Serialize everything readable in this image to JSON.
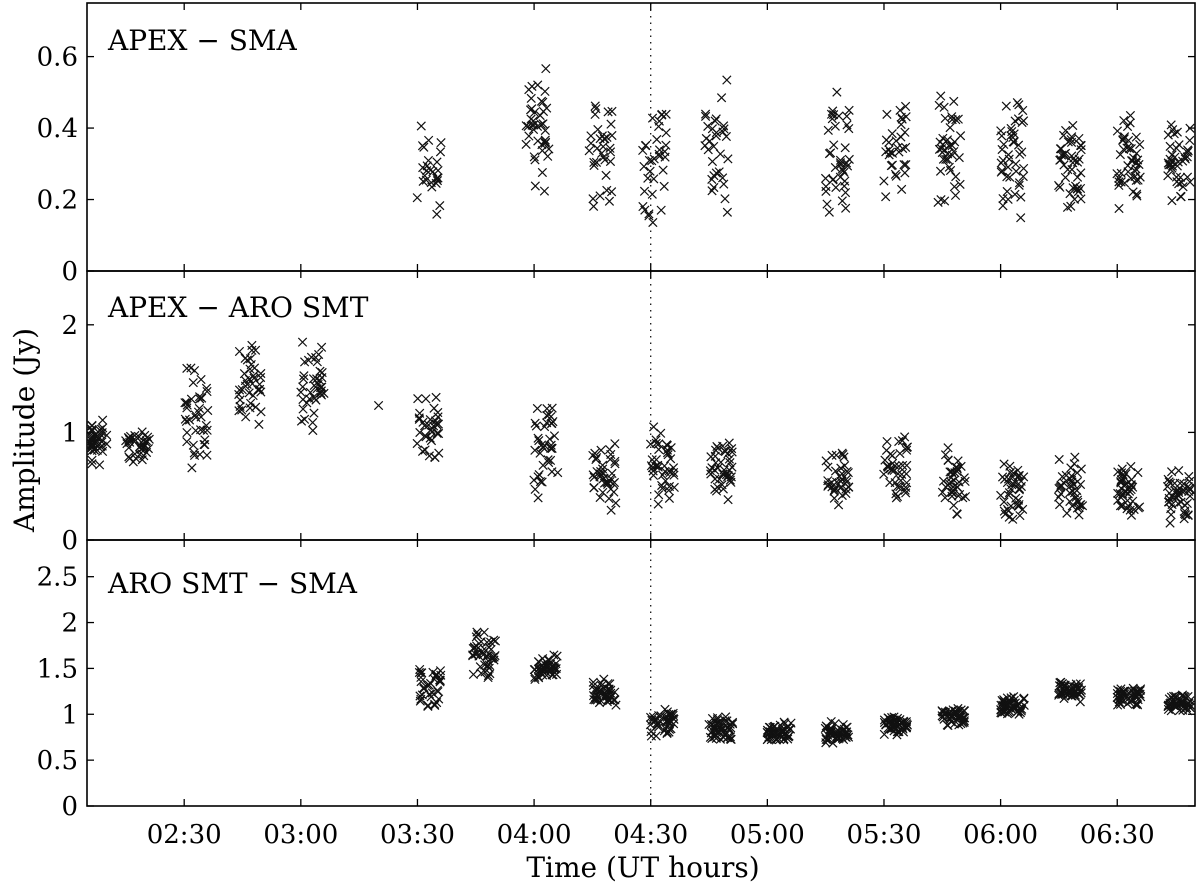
{
  "chart_data": {
    "type": "scatter",
    "xlabel": "Time (UT hours)",
    "ylabel": "Amplitude (Jy)",
    "x_range": [
      "02:05",
      "06:50"
    ],
    "x_ticks": [
      "02:30",
      "03:00",
      "03:30",
      "04:00",
      "04:30",
      "05:00",
      "05:30",
      "06:00",
      "06:30"
    ],
    "reference_line": "04:30",
    "marker": "x",
    "panels": [
      {
        "title": "APEX − SMA",
        "ylim": [
          0,
          0.75
        ],
        "y_ticks": [
          "0",
          "0.2",
          "0.4",
          "0.6"
        ],
        "scans": [
          {
            "t": "03:33",
            "mean": 0.29,
            "spread": 0.14,
            "n": 26
          },
          {
            "t": "04:01",
            "mean": 0.4,
            "spread": 0.15,
            "n": 40
          },
          {
            "t": "04:17",
            "mean": 0.33,
            "spread": 0.14,
            "n": 34
          },
          {
            "t": "04:31",
            "mean": 0.32,
            "spread": 0.15,
            "n": 34
          },
          {
            "t": "04:47",
            "mean": 0.34,
            "spread": 0.15,
            "n": 32
          },
          {
            "t": "05:18",
            "mean": 0.3,
            "spread": 0.15,
            "n": 40
          },
          {
            "t": "05:33",
            "mean": 0.34,
            "spread": 0.12,
            "n": 32
          },
          {
            "t": "05:47",
            "mean": 0.36,
            "spread": 0.13,
            "n": 40
          },
          {
            "t": "06:03",
            "mean": 0.32,
            "spread": 0.13,
            "n": 44
          },
          {
            "t": "06:18",
            "mean": 0.3,
            "spread": 0.11,
            "n": 44
          },
          {
            "t": "06:33",
            "mean": 0.31,
            "spread": 0.11,
            "n": 44
          },
          {
            "t": "06:46",
            "mean": 0.31,
            "spread": 0.09,
            "n": 44
          }
        ]
      },
      {
        "title": "APEX − ARO SMT",
        "ylim": [
          0,
          2.5
        ],
        "y_ticks": [
          "0",
          "1",
          "2"
        ],
        "scans": [
          {
            "t": "02:07",
            "mean": 0.9,
            "spread": 0.17,
            "n": 40
          },
          {
            "t": "02:18",
            "mean": 0.9,
            "spread": 0.14,
            "n": 36
          },
          {
            "t": "02:33",
            "mean": 1.15,
            "spread": 0.4,
            "n": 40
          },
          {
            "t": "02:47",
            "mean": 1.45,
            "spread": 0.3,
            "n": 40
          },
          {
            "t": "03:03",
            "mean": 1.45,
            "spread": 0.33,
            "n": 40
          },
          {
            "t": "03:20",
            "mean": 1.25,
            "spread": 0.0,
            "n": 1
          },
          {
            "t": "03:33",
            "mean": 1.05,
            "spread": 0.25,
            "n": 34
          },
          {
            "t": "04:03",
            "mean": 0.85,
            "spread": 0.35,
            "n": 40
          },
          {
            "t": "04:18",
            "mean": 0.6,
            "spread": 0.25,
            "n": 40
          },
          {
            "t": "04:33",
            "mean": 0.65,
            "spread": 0.3,
            "n": 40
          },
          {
            "t": "04:48",
            "mean": 0.65,
            "spread": 0.25,
            "n": 40
          },
          {
            "t": "05:18",
            "mean": 0.55,
            "spread": 0.2,
            "n": 36
          },
          {
            "t": "05:33",
            "mean": 0.65,
            "spread": 0.25,
            "n": 40
          },
          {
            "t": "05:48",
            "mean": 0.55,
            "spread": 0.25,
            "n": 40
          },
          {
            "t": "06:03",
            "mean": 0.45,
            "spread": 0.25,
            "n": 40
          },
          {
            "t": "06:18",
            "mean": 0.5,
            "spread": 0.23,
            "n": 40
          },
          {
            "t": "06:33",
            "mean": 0.45,
            "spread": 0.2,
            "n": 40
          },
          {
            "t": "06:46",
            "mean": 0.4,
            "spread": 0.2,
            "n": 44
          }
        ]
      },
      {
        "title": "ARO SMT − SMA",
        "ylim": [
          0,
          2.9
        ],
        "y_ticks": [
          "0",
          "0.5",
          "1",
          "1.5",
          "2",
          "2.5"
        ],
        "scans": [
          {
            "t": "03:33",
            "mean": 1.3,
            "spread": 0.2,
            "n": 36
          },
          {
            "t": "03:47",
            "mean": 1.65,
            "spread": 0.2,
            "n": 44
          },
          {
            "t": "04:03",
            "mean": 1.5,
            "spread": 0.12,
            "n": 48
          },
          {
            "t": "04:18",
            "mean": 1.25,
            "spread": 0.12,
            "n": 44
          },
          {
            "t": "04:33",
            "mean": 0.9,
            "spread": 0.12,
            "n": 40
          },
          {
            "t": "04:48",
            "mean": 0.85,
            "spread": 0.11,
            "n": 48
          },
          {
            "t": "05:03",
            "mean": 0.8,
            "spread": 0.1,
            "n": 48
          },
          {
            "t": "05:18",
            "mean": 0.8,
            "spread": 0.1,
            "n": 48
          },
          {
            "t": "05:33",
            "mean": 0.88,
            "spread": 0.09,
            "n": 48
          },
          {
            "t": "05:48",
            "mean": 0.98,
            "spread": 0.09,
            "n": 48
          },
          {
            "t": "06:03",
            "mean": 1.08,
            "spread": 0.09,
            "n": 48
          },
          {
            "t": "06:18",
            "mean": 1.25,
            "spread": 0.09,
            "n": 48
          },
          {
            "t": "06:33",
            "mean": 1.2,
            "spread": 0.09,
            "n": 48
          },
          {
            "t": "06:46",
            "mean": 1.12,
            "spread": 0.09,
            "n": 48
          }
        ]
      }
    ]
  }
}
